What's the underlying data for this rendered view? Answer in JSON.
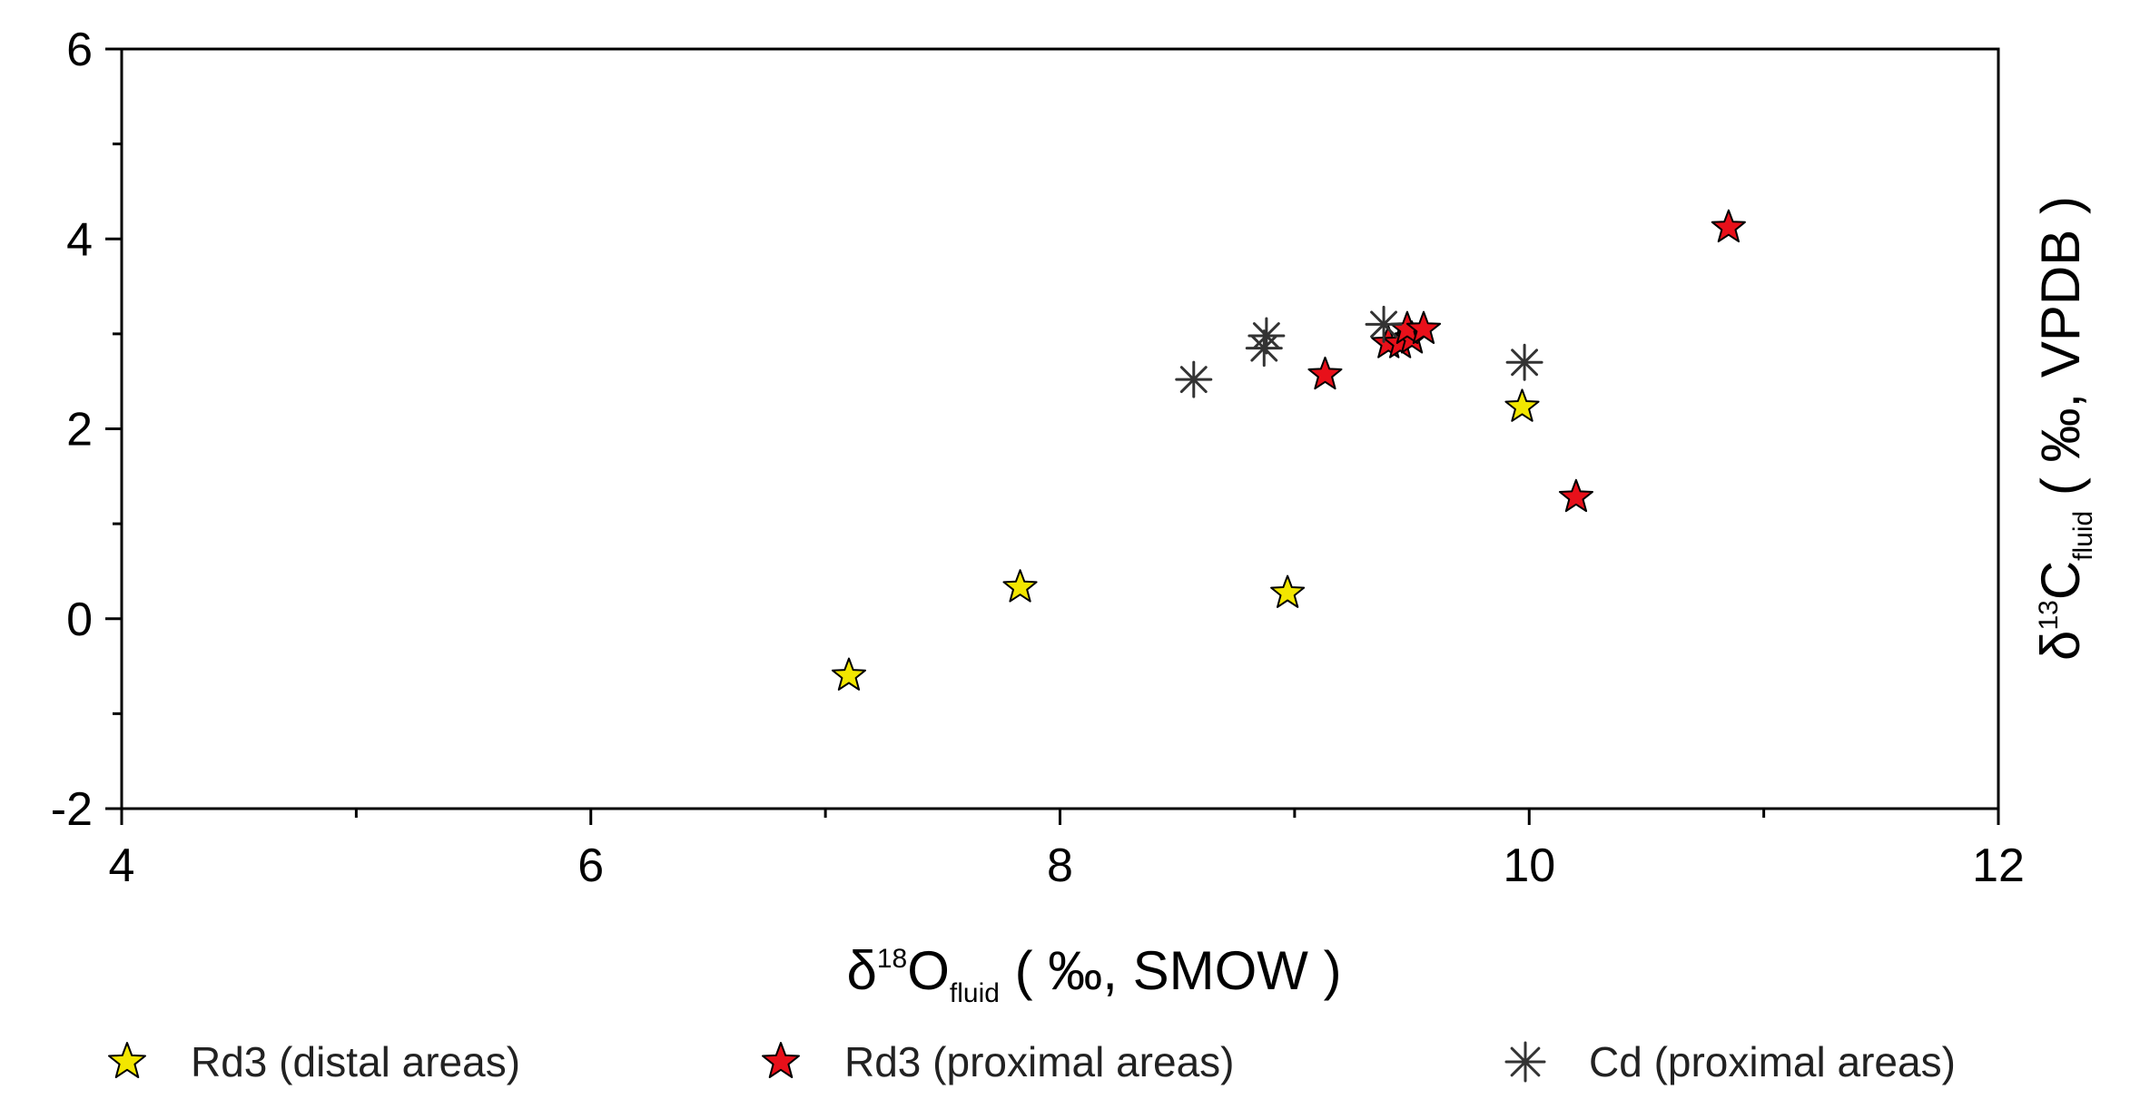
{
  "chart_data": {
    "type": "scatter",
    "title": "",
    "xlabel": {
      "base": "δ",
      "sup": "18",
      "main": "O",
      "sub": "fluid",
      "unit": " ( ‰, SMOW )"
    },
    "ylabel": {
      "base": "δ",
      "sup": "13",
      "main": "C",
      "sub": "fluid",
      "unit": " ( ‰, VPDB )"
    },
    "xlim": [
      4,
      12
    ],
    "ylim": [
      -2,
      6
    ],
    "xticks": [
      4,
      6,
      8,
      10,
      12
    ],
    "yticks": [
      -2,
      0,
      2,
      4,
      6
    ],
    "grid": false,
    "legend_position": "bottom",
    "series": [
      {
        "name": "Rd3 (distal areas)",
        "marker": "star",
        "color": "#f2e600",
        "points": [
          [
            7.1,
            -0.6
          ],
          [
            7.83,
            0.33
          ],
          [
            8.97,
            0.27
          ],
          [
            9.97,
            2.23
          ]
        ]
      },
      {
        "name": "Rd3 (proximal areas)",
        "marker": "star",
        "color": "#e8101a",
        "points": [
          [
            9.13,
            2.57
          ],
          [
            9.4,
            2.9
          ],
          [
            9.45,
            2.9
          ],
          [
            9.5,
            2.95
          ],
          [
            9.48,
            3.05
          ],
          [
            9.55,
            3.05
          ],
          [
            10.2,
            1.28
          ],
          [
            10.85,
            4.12
          ]
        ]
      },
      {
        "name": "Cd (proximal areas)",
        "marker": "asterisk",
        "color": "#333333",
        "points": [
          [
            8.57,
            2.52
          ],
          [
            8.87,
            2.85
          ],
          [
            8.88,
            2.98
          ],
          [
            9.38,
            3.1
          ],
          [
            9.98,
            2.7
          ]
        ]
      }
    ]
  }
}
